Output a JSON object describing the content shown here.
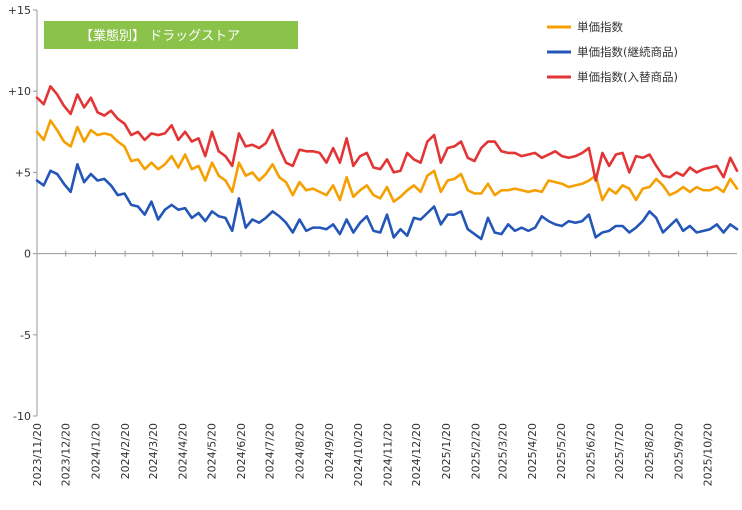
{
  "chart_data": {
    "type": "line",
    "title_badge": "【業態別】 ドラッグストア",
    "ylim": [
      -10,
      15
    ],
    "yticks": [
      {
        "v": 15,
        "label": "+15"
      },
      {
        "v": 10,
        "label": "+10"
      },
      {
        "v": 5,
        "label": "+5"
      },
      {
        "v": 0,
        "label": "0"
      },
      {
        "v": -5,
        "label": "-5"
      },
      {
        "v": -10,
        "label": "-10"
      }
    ],
    "xticks": [
      "2023/11/20",
      "2023/12/20",
      "2024/1/20",
      "2024/2/20",
      "2024/3/20",
      "2024/4/20",
      "2024/5/20",
      "2024/6/20",
      "2024/7/20",
      "2024/8/20",
      "2024/9/20",
      "2024/10/20",
      "2024/11/20",
      "2024/12/20",
      "2025/1/20",
      "2025/2/20",
      "2025/3/20",
      "2025/4/20",
      "2025/5/20",
      "2025/6/20",
      "2025/7/20",
      "2025/8/20",
      "2025/9/20",
      "2025/10/20"
    ],
    "x_start": "2023/11/20",
    "x_end": "2025/11/20",
    "legend_position": "top-right",
    "grid": false,
    "series": [
      {
        "name": "単価指数",
        "color": "#F5A000",
        "values": [
          7.5,
          7.0,
          8.2,
          7.6,
          6.9,
          6.6,
          7.8,
          6.9,
          7.6,
          7.3,
          7.4,
          7.3,
          6.9,
          6.6,
          5.7,
          5.8,
          5.2,
          5.6,
          5.2,
          5.5,
          6.0,
          5.3,
          6.1,
          5.2,
          5.4,
          4.5,
          5.6,
          4.8,
          4.5,
          3.8,
          5.6,
          4.8,
          5.0,
          4.5,
          4.9,
          5.5,
          4.7,
          4.4,
          3.6,
          4.4,
          3.9,
          4.0,
          3.8,
          3.6,
          4.2,
          3.3,
          4.7,
          3.5,
          3.9,
          4.2,
          3.6,
          3.4,
          4.1,
          3.2,
          3.5,
          3.9,
          4.2,
          3.8,
          4.8,
          5.1,
          3.8,
          4.5,
          4.6,
          4.9,
          3.9,
          3.7,
          3.7,
          4.3,
          3.6,
          3.9,
          3.9,
          4.0,
          3.9,
          3.8,
          3.9,
          3.8,
          4.5,
          4.4,
          4.3,
          4.1,
          4.2,
          4.3,
          4.5,
          4.8,
          3.3,
          4.0,
          3.7,
          4.2,
          4.0,
          3.3,
          4.0,
          4.1,
          4.6,
          4.2,
          3.6,
          3.8,
          4.1,
          3.8,
          4.1,
          3.9,
          3.9,
          4.1,
          3.8,
          4.6,
          4.0
        ]
      },
      {
        "name": "単価指数(継続商品)",
        "color": "#2456B8",
        "values": [
          4.5,
          4.2,
          5.1,
          4.9,
          4.3,
          3.8,
          5.5,
          4.4,
          4.9,
          4.5,
          4.6,
          4.2,
          3.6,
          3.7,
          3.0,
          2.9,
          2.4,
          3.2,
          2.1,
          2.7,
          3.0,
          2.7,
          2.8,
          2.2,
          2.5,
          2.0,
          2.6,
          2.3,
          2.2,
          1.4,
          3.4,
          1.6,
          2.1,
          1.9,
          2.2,
          2.6,
          2.3,
          1.9,
          1.3,
          2.1,
          1.4,
          1.6,
          1.6,
          1.5,
          1.8,
          1.2,
          2.1,
          1.3,
          1.9,
          2.3,
          1.4,
          1.3,
          2.4,
          1.0,
          1.5,
          1.1,
          2.2,
          2.1,
          2.5,
          2.9,
          1.8,
          2.4,
          2.4,
          2.6,
          1.5,
          1.2,
          0.9,
          2.2,
          1.3,
          1.2,
          1.8,
          1.4,
          1.6,
          1.4,
          1.6,
          2.3,
          2.0,
          1.8,
          1.7,
          2.0,
          1.9,
          2.0,
          2.4,
          1.0,
          1.3,
          1.4,
          1.7,
          1.7,
          1.3,
          1.6,
          2.0,
          2.6,
          2.2,
          1.3,
          1.7,
          2.1,
          1.4,
          1.7,
          1.3,
          1.4,
          1.5,
          1.8,
          1.3,
          1.8,
          1.5
        ]
      },
      {
        "name": "単価指数(入替商品)",
        "color": "#E33535",
        "values": [
          9.6,
          9.2,
          10.3,
          9.8,
          9.1,
          8.6,
          9.8,
          9.0,
          9.6,
          8.7,
          8.5,
          8.8,
          8.3,
          8.0,
          7.3,
          7.5,
          7.0,
          7.4,
          7.3,
          7.4,
          7.9,
          7.0,
          7.5,
          6.9,
          7.1,
          6.0,
          7.5,
          6.3,
          6.0,
          5.4,
          7.4,
          6.6,
          6.7,
          6.5,
          6.8,
          7.6,
          6.5,
          5.6,
          5.4,
          6.4,
          6.3,
          6.3,
          6.2,
          5.6,
          6.5,
          5.6,
          7.1,
          5.4,
          6.0,
          6.2,
          5.3,
          5.2,
          5.8,
          5.0,
          5.1,
          6.2,
          5.8,
          5.6,
          6.9,
          7.3,
          5.6,
          6.5,
          6.6,
          6.9,
          5.9,
          5.7,
          6.5,
          6.9,
          6.9,
          6.3,
          6.2,
          6.2,
          6.0,
          6.1,
          6.2,
          5.9,
          6.1,
          6.3,
          6.0,
          5.9,
          6.0,
          6.2,
          6.5,
          4.5,
          6.2,
          5.4,
          6.1,
          6.2,
          5.0,
          6.0,
          5.9,
          6.1,
          5.4,
          4.8,
          4.7,
          5.0,
          4.8,
          5.3,
          5.0,
          5.2,
          5.3,
          5.4,
          4.7,
          5.9,
          5.1
        ]
      }
    ]
  }
}
